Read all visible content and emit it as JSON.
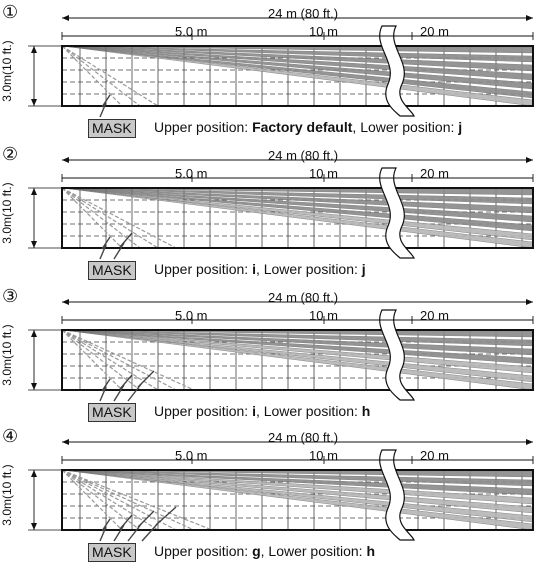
{
  "length_label": "24 m (80 ft.)",
  "distance_labels": [
    "5.0 m",
    "10 m",
    "20 m"
  ],
  "height_label": "3.0m(10 ft.)",
  "mask_label": "MASK",
  "panels": [
    {
      "number": "①",
      "mask_lines": 1,
      "upper_text": "Upper position: ",
      "upper_value": "Factory default",
      "lower_text": ", Lower position: ",
      "lower_value": "j"
    },
    {
      "number": "②",
      "mask_lines": 2,
      "upper_text": "Upper position: ",
      "upper_value": "i",
      "lower_text": ", Lower position: ",
      "lower_value": "j"
    },
    {
      "number": "③",
      "mask_lines": 3,
      "upper_text": "Upper position: ",
      "upper_value": "i",
      "lower_text": ", Lower position: ",
      "lower_value": "h"
    },
    {
      "number": "④",
      "mask_lines": 4,
      "upper_text": "Upper position: ",
      "upper_value": "g",
      "lower_text": ", Lower position: ",
      "lower_value": "h"
    }
  ]
}
